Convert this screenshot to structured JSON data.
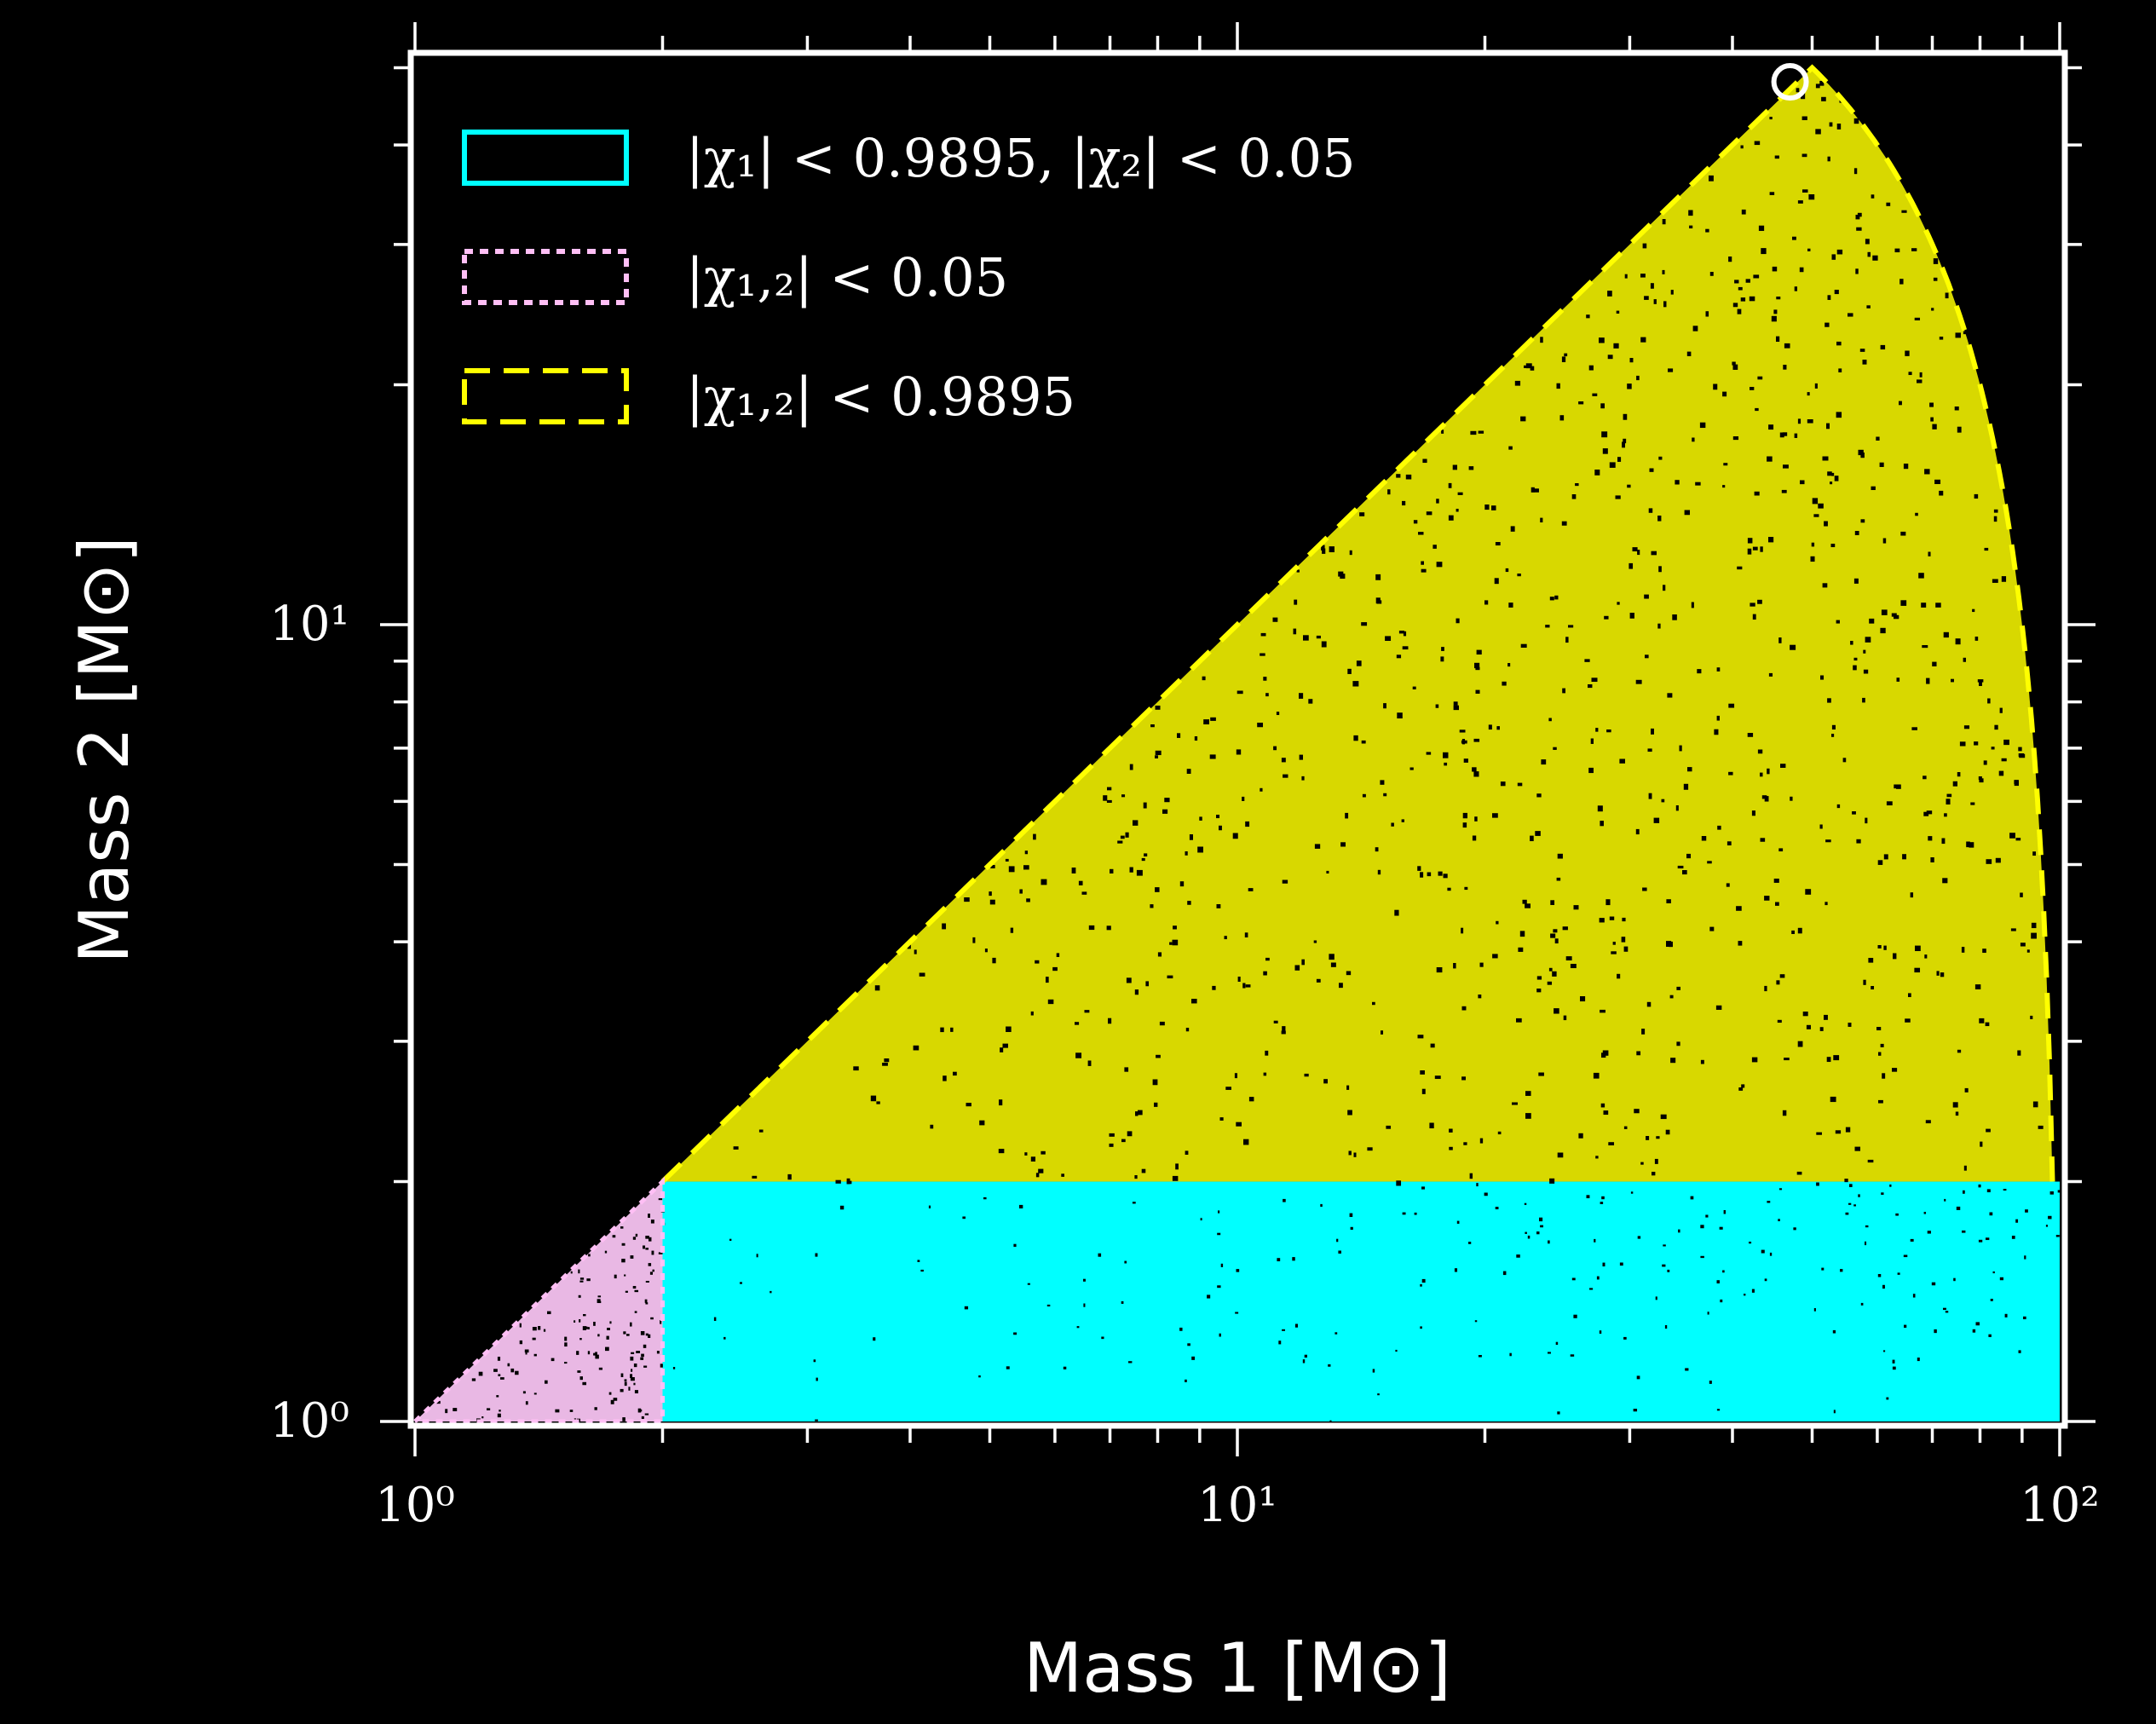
{
  "chart_data": {
    "type": "scatter",
    "xlabel": "Mass 1 [M⊙]",
    "ylabel": "Mass 2 [M⊙]",
    "xscale": "log",
    "yscale": "log",
    "xlim": [
      1,
      100
    ],
    "ylim": [
      1,
      60
    ],
    "xticks": [
      {
        "value": 1,
        "label": "10⁰"
      },
      {
        "value": 10,
        "label": "10¹"
      },
      {
        "value": 100,
        "label": "10²"
      }
    ],
    "yticks": [
      {
        "value": 1,
        "label": "10⁰"
      },
      {
        "value": 10,
        "label": "10¹"
      }
    ],
    "grid": false,
    "legend_position": "top-left",
    "series": [
      {
        "name": "|χ₁| < 0.9895, |χ₂| < 0.05",
        "color": "#00ffff",
        "style": "solid",
        "region": {
          "m1_min": 2,
          "m1_max": 100,
          "m2_min": 1,
          "m2_max": 2
        }
      },
      {
        "name": "|χ₁,₂| < 0.05",
        "color": "#ffbff5",
        "style": "dotted",
        "region": {
          "m1_min": 1,
          "m1_max": 2,
          "m2_min": 1,
          "m2_max": 2,
          "constraint": "m2 <= m1"
        }
      },
      {
        "name": "|χ₁,₂| < 0.9895",
        "color": "#ffff00",
        "style": "dashed",
        "region": {
          "m2_min": 2,
          "constraint": "m2 <= m1, m1 + m2 <= 100"
        }
      }
    ],
    "markers": [
      {
        "symbol": "open-circle",
        "color": "#ffffff",
        "x": 47,
        "y": 48
      }
    ]
  }
}
